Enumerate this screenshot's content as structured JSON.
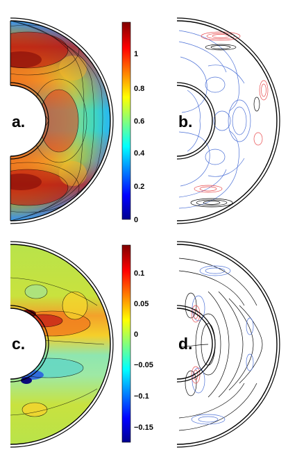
{
  "panels": [
    {
      "label": "a."
    },
    {
      "label": "b."
    },
    {
      "label": "c."
    },
    {
      "label": "d."
    }
  ],
  "colorbar_top": {
    "ticks": [
      "1",
      "0.8",
      "0.6",
      "0.4",
      "0.2",
      "0"
    ],
    "range": [
      0,
      1.2
    ]
  },
  "colorbar_bottom": {
    "ticks": [
      "0.1",
      "0.05",
      "0",
      "−0.05",
      "−0.1",
      "−0.15"
    ],
    "range": [
      -0.18,
      0.14
    ]
  },
  "colors": {
    "colormap": [
      "#00008f",
      "#0000ff",
      "#00ffff",
      "#ffff00",
      "#ff0000",
      "#800000"
    ],
    "contour_positive": "#e8474a",
    "contour_negative": "#4a6fd6",
    "contour_neutral": "#000000"
  }
}
